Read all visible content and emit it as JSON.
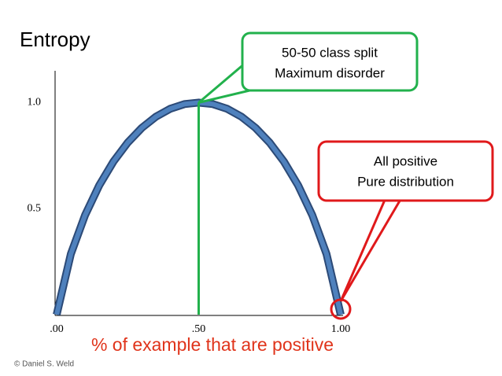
{
  "chart_data": {
    "type": "line",
    "title": "Entropy",
    "x_label": "% of example that are positive",
    "x": [
      0,
      0.05,
      0.1,
      0.15,
      0.2,
      0.25,
      0.3,
      0.35,
      0.4,
      0.45,
      0.5,
      0.55,
      0.6,
      0.65,
      0.7,
      0.75,
      0.8,
      0.85,
      0.9,
      0.95,
      1
    ],
    "series": [
      {
        "color": "#4f81bd",
        "values": [
          0,
          0.286,
          0.469,
          0.61,
          0.722,
          0.811,
          0.881,
          0.934,
          0.971,
          0.993,
          1,
          0.993,
          0.971,
          0.934,
          0.881,
          0.811,
          0.722,
          0.61,
          0.469,
          0.286,
          0
        ]
      }
    ],
    "xlim": [
      0,
      1
    ],
    "ylim": [
      0,
      1.15
    ],
    "xticks": [
      {
        "value": 0,
        "label": ".00"
      },
      {
        "value": 0.5,
        "label": ".50"
      },
      {
        "value": 1,
        "label": "1.00"
      }
    ],
    "yticks": [
      {
        "value": 0.5,
        "label": "0.5"
      },
      {
        "value": 1,
        "label": "1.0"
      }
    ],
    "annotations": [
      {
        "lines": [
          "50-50 class split",
          "Maximum disorder"
        ],
        "x": 0.5,
        "y": 1,
        "color": "#22b14c"
      },
      {
        "lines": [
          "All positive",
          "Pure distribution"
        ],
        "x": 1,
        "y": 0,
        "color": "#e0191b"
      }
    ],
    "credit": "© Daniel S. Weld"
  }
}
